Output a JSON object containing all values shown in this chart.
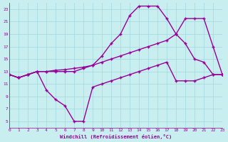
{
  "xlabel": "Windchill (Refroidissement éolien,°C)",
  "bg_color": "#c8eef0",
  "grid_color": "#a0d8e0",
  "line_color": "#990099",
  "xlim": [
    0,
    23
  ],
  "ylim": [
    4,
    24
  ],
  "xticks": [
    0,
    1,
    2,
    3,
    4,
    5,
    6,
    7,
    8,
    9,
    10,
    11,
    12,
    13,
    14,
    15,
    16,
    17,
    18,
    19,
    20,
    21,
    22,
    23
  ],
  "yticks": [
    5,
    7,
    9,
    11,
    13,
    15,
    17,
    19,
    21,
    23
  ],
  "curve1_x": [
    0,
    1,
    2,
    3,
    4,
    5,
    6,
    7,
    8,
    9,
    10,
    11,
    12,
    13,
    14,
    15,
    16,
    17,
    18,
    19,
    20,
    21,
    22,
    23
  ],
  "curve1_y": [
    12.5,
    12.0,
    12.5,
    13.0,
    13.0,
    13.0,
    13.0,
    13.0,
    13.5,
    14.0,
    15.5,
    17.5,
    19.0,
    22.0,
    23.5,
    23.5,
    23.5,
    21.5,
    19.0,
    17.5,
    15.0,
    14.5,
    12.5,
    12.5
  ],
  "curve2_x": [
    0,
    1,
    2,
    3,
    4,
    5,
    6,
    7,
    8,
    9,
    10,
    11,
    12,
    13,
    14,
    15,
    16,
    17,
    18,
    19,
    20,
    21,
    22,
    23
  ],
  "curve2_y": [
    12.5,
    12.0,
    12.5,
    13.0,
    13.0,
    13.2,
    13.3,
    13.5,
    13.7,
    14.0,
    14.5,
    15.0,
    15.5,
    16.0,
    16.5,
    17.0,
    17.5,
    18.0,
    19.0,
    21.5,
    21.5,
    21.5,
    17.0,
    12.5
  ],
  "curve3_x": [
    0,
    1,
    2,
    3,
    4,
    5,
    6,
    7,
    8,
    9,
    10,
    11,
    12,
    13,
    14,
    15,
    16,
    17,
    18,
    19,
    20,
    21,
    22,
    23
  ],
  "curve3_y": [
    12.5,
    12.0,
    12.5,
    13.0,
    10.0,
    8.5,
    7.5,
    5.0,
    5.0,
    10.5,
    11.0,
    11.5,
    12.0,
    12.5,
    13.0,
    13.5,
    14.0,
    14.5,
    11.5,
    11.5,
    11.5,
    12.0,
    12.5,
    12.5
  ]
}
